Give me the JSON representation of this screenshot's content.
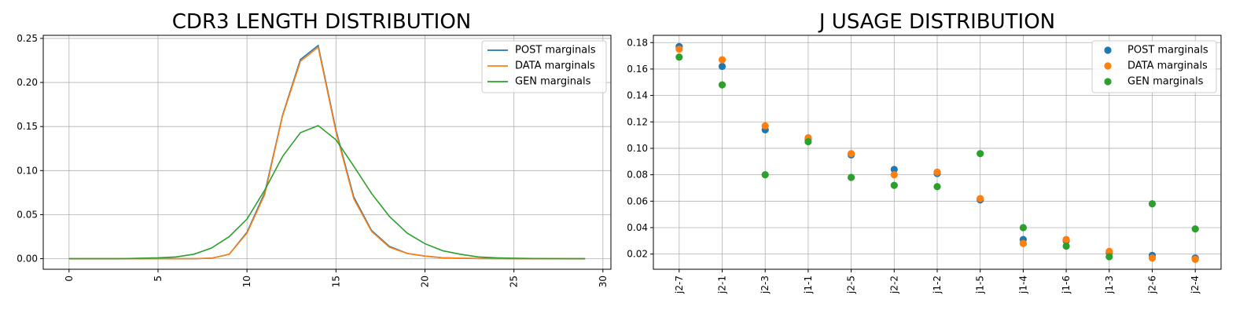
{
  "colors": {
    "post": "#1f77b4",
    "data": "#ff7f0e",
    "gen": "#2ca02c"
  },
  "chart_data": [
    {
      "type": "line",
      "title": "CDR3 LENGTH DISTRIBUTION",
      "xlabel": "",
      "ylabel": "",
      "xlim": [
        -1.45,
        30.45
      ],
      "ylim": [
        -0.012,
        0.2535
      ],
      "xticks": [
        0,
        5,
        10,
        15,
        20,
        25,
        30
      ],
      "xtick_labels": [
        "0",
        "5",
        "10",
        "15",
        "20",
        "25",
        "30"
      ],
      "yticks": [
        0.0,
        0.05,
        0.1,
        0.15,
        0.2,
        0.25
      ],
      "ytick_labels": [
        "0.00",
        "0.05",
        "0.10",
        "0.15",
        "0.20",
        "0.25"
      ],
      "xtick_rotation": "vertical",
      "grid": true,
      "legend_position": "top-right",
      "x": [
        0,
        1,
        2,
        3,
        4,
        5,
        6,
        7,
        8,
        9,
        10,
        11,
        12,
        13,
        14,
        15,
        16,
        17,
        18,
        19,
        20,
        21,
        22,
        23,
        24,
        25,
        26,
        27,
        28,
        29
      ],
      "series": [
        {
          "name": "POST marginals",
          "color_key": "post",
          "values": [
            0,
            0,
            0,
            0,
            0,
            0,
            0,
            0,
            0.0005,
            0.005,
            0.03,
            0.075,
            0.163,
            0.226,
            0.242,
            0.146,
            0.07,
            0.032,
            0.014,
            0.006,
            0.003,
            0.001,
            0.0005,
            0.0002,
            0.0001,
            0,
            0,
            0,
            0,
            0
          ]
        },
        {
          "name": "DATA marginals",
          "color_key": "data",
          "values": [
            0,
            0,
            0,
            0,
            0,
            0,
            0,
            0,
            0.0005,
            0.005,
            0.029,
            0.073,
            0.162,
            0.224,
            0.24,
            0.144,
            0.068,
            0.031,
            0.013,
            0.006,
            0.003,
            0.001,
            0.0005,
            0.0002,
            0.0001,
            0,
            0,
            0,
            0,
            0
          ]
        },
        {
          "name": "GEN marginals",
          "color_key": "gen",
          "values": [
            0,
            0,
            0,
            0,
            0.0005,
            0.001,
            0.002,
            0.005,
            0.012,
            0.025,
            0.045,
            0.078,
            0.116,
            0.143,
            0.151,
            0.135,
            0.105,
            0.074,
            0.048,
            0.029,
            0.017,
            0.009,
            0.005,
            0.002,
            0.001,
            0.0005,
            0.0002,
            0.0001,
            0,
            0
          ]
        }
      ]
    },
    {
      "type": "scatter",
      "title": "J USAGE DISTRIBUTION",
      "xlabel": "",
      "ylabel": "",
      "categories": [
        "j2-7",
        "j2-1",
        "j2-3",
        "j1-1",
        "j2-5",
        "j2-2",
        "j1-2",
        "j1-5",
        "j1-4",
        "j1-6",
        "j1-3",
        "j2-6",
        "j2-4"
      ],
      "ylim": [
        0.0085,
        0.1855
      ],
      "yticks": [
        0.02,
        0.04,
        0.06,
        0.08,
        0.1,
        0.12,
        0.14,
        0.16,
        0.18
      ],
      "ytick_labels": [
        "0.02",
        "0.04",
        "0.06",
        "0.08",
        "0.10",
        "0.12",
        "0.14",
        "0.16",
        "0.18"
      ],
      "xtick_rotation": "vertical",
      "grid": true,
      "legend_position": "top-right",
      "series": [
        {
          "name": "POST marginals",
          "color_key": "post",
          "values": [
            0.177,
            0.162,
            0.114,
            0.107,
            0.095,
            0.084,
            0.081,
            0.061,
            0.031,
            0.03,
            0.021,
            0.019,
            0.017
          ]
        },
        {
          "name": "DATA marginals",
          "color_key": "data",
          "values": [
            0.175,
            0.167,
            0.117,
            0.108,
            0.096,
            0.08,
            0.082,
            0.062,
            0.028,
            0.031,
            0.022,
            0.017,
            0.016
          ]
        },
        {
          "name": "GEN marginals",
          "color_key": "gen",
          "values": [
            0.169,
            0.148,
            0.08,
            0.105,
            0.078,
            0.072,
            0.071,
            0.096,
            0.04,
            0.026,
            0.018,
            0.058,
            0.039
          ]
        }
      ]
    }
  ]
}
